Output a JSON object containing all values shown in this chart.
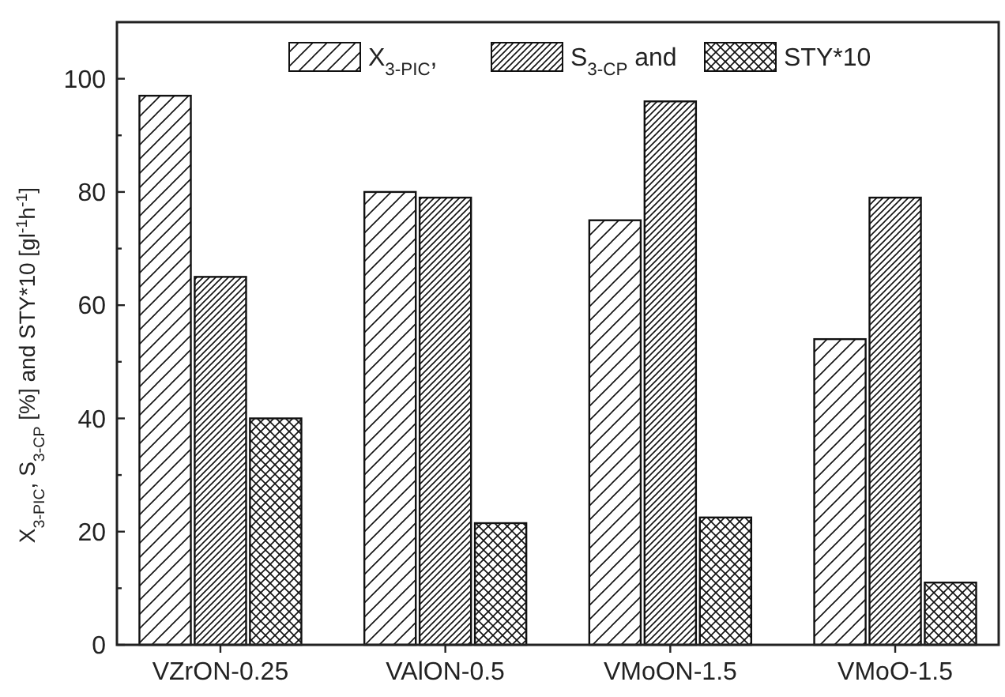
{
  "chart_data": {
    "type": "bar",
    "ylabel": "X$_{3-PIC}$, S$_{3-CP}$ [%] and STY*10 [gl$^{-1}$h$^{-1}$]",
    "categories": [
      "VZrON-0.25",
      "VAlON-0.5",
      "VMoON-1.5",
      "VMoO-1.5"
    ],
    "series": [
      {
        "name": "X$_{3-PIC}$,",
        "color": "#111111",
        "values": [
          97,
          80,
          75,
          54
        ]
      },
      {
        "name": "S$_{3-CP}$ and",
        "color": "#111111",
        "values": [
          65,
          79,
          96,
          79
        ]
      },
      {
        "name": "STY*10",
        "color": "#111111",
        "values": [
          40,
          21.5,
          22.5,
          11
        ]
      }
    ],
    "ylim": [
      0,
      110
    ],
    "yticks": [
      0,
      {
        "value": 10,
        "label": null
      },
      20,
      {
        "value": 30,
        "label": null
      },
      40,
      {
        "value": 50,
        "label": null
      },
      60,
      {
        "value": 70,
        "label": null
      },
      80,
      {
        "value": 90,
        "label": null
      },
      100
    ],
    "grid": false,
    "legend": "top"
  }
}
